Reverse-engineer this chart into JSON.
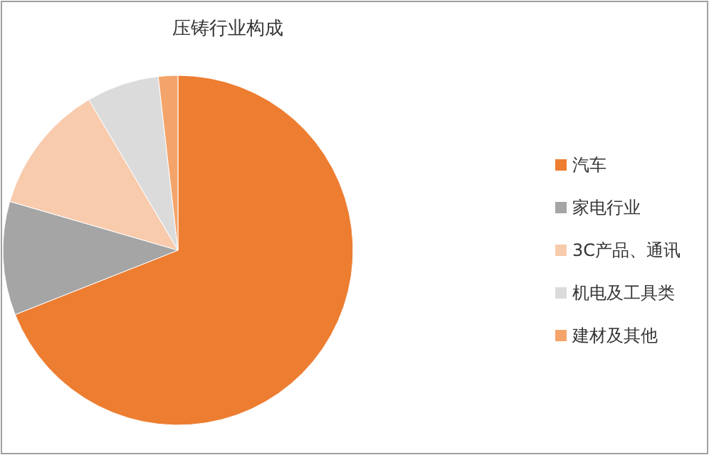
{
  "chart_data": {
    "type": "pie",
    "title": "压铸行业构成",
    "legend": "right",
    "categories": [
      "汽车",
      "家电行业",
      "3C产品、通讯",
      "机电及工具类",
      "建材及其他"
    ],
    "values": [
      69,
      10.5,
      12,
      6.7,
      1.8
    ],
    "colors": [
      "#ed7d31",
      "#a5a5a5",
      "#f8cbad",
      "#dbdbdb",
      "#f4a46a"
    ]
  }
}
